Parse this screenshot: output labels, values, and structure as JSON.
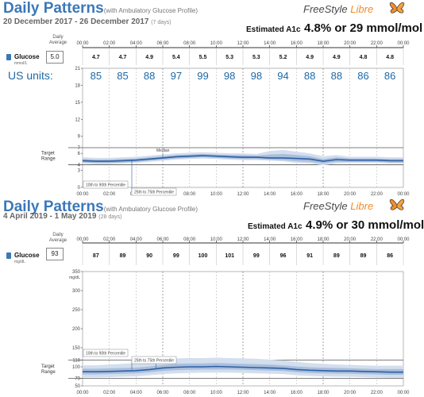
{
  "report": {
    "logo_freestyle": "FreeStyle",
    "logo_libre": "Libre",
    "daily_average_label_line1": "Daily",
    "daily_average_label_line2": "Average",
    "glucose_label": "Glucose",
    "target_range_line1": "Target",
    "target_range_line2": "Range",
    "median_label": "Median",
    "pct_10_90": "10th to 90th Percentile",
    "pct_25_75": "25th to 75th Percentile",
    "us_units_label": "US units:"
  },
  "colors": {
    "title": "#3b78b8",
    "band_outer": "#d3deee",
    "band_inner": "#a9bedc",
    "median": "#2e5fa3",
    "us_units": "#1d68a6",
    "logo_accent": "#f28c28"
  },
  "chart_data": [
    {
      "type": "area",
      "title": "Daily Patterns",
      "subtitle": "(with Ambulatory Glucose Profile)",
      "date_range": "20 December 2017 - 26 December 2017",
      "days_label": "(7 days)",
      "estimated_a1c_label": "Estimated A1c",
      "estimated_a1c_value": "4.8% or 29 mmol/mol",
      "unit": "mmol/L",
      "daily_average": "5.0",
      "x_ticks": [
        "00:00",
        "02:00",
        "04:00",
        "06:00",
        "08:00",
        "10:00",
        "12:00",
        "14:00",
        "16:00",
        "18:00",
        "20:00",
        "22:00",
        "00:00"
      ],
      "hourly_labels": [
        "4.7",
        "4.7",
        "4.9",
        "5.4",
        "5.5",
        "5.3",
        "5.3",
        "5.2",
        "4.9",
        "4.9",
        "4.8",
        "4.8"
      ],
      "us_unit_labels": [
        "85",
        "85",
        "88",
        "97",
        "99",
        "98",
        "98",
        "94",
        "88",
        "88",
        "86",
        "86"
      ],
      "y_ticks": [
        21,
        18,
        15,
        12,
        9,
        6,
        3,
        0
      ],
      "y_ticks_labels": [
        "21",
        "18",
        "15",
        "12",
        "9",
        "6",
        "3",
        "0"
      ],
      "target_range_labels": [
        "7",
        "4"
      ],
      "ylim": [
        0,
        21
      ],
      "target_range": [
        4,
        7
      ],
      "x": [
        0,
        1,
        2,
        3,
        4,
        5,
        6,
        7,
        8,
        9,
        10,
        11,
        12,
        13,
        14,
        15,
        16,
        17,
        18,
        19,
        20,
        21,
        22,
        23,
        24
      ],
      "series": [
        {
          "values": [
            4.7,
            4.6,
            4.6,
            4.7,
            4.8,
            5.0,
            5.2,
            5.4,
            5.5,
            5.6,
            5.5,
            5.4,
            5.3,
            5.3,
            5.2,
            5.2,
            5.1,
            5.0,
            4.6,
            4.9,
            4.8,
            4.8,
            4.8,
            4.7,
            4.7
          ]
        },
        {
          "values": [
            4.4,
            4.3,
            4.3,
            4.4,
            4.5,
            4.7,
            4.9,
            5.1,
            5.2,
            5.3,
            5.2,
            5.1,
            5.0,
            5.0,
            4.9,
            4.8,
            4.6,
            4.5,
            4.2,
            4.5,
            4.5,
            4.5,
            4.5,
            4.4,
            4.4
          ]
        },
        {
          "values": [
            5.0,
            4.9,
            4.9,
            5.0,
            5.1,
            5.3,
            5.5,
            5.7,
            5.8,
            5.9,
            5.8,
            5.7,
            5.7,
            5.6,
            5.8,
            5.9,
            5.7,
            5.5,
            5.0,
            5.3,
            5.1,
            5.1,
            5.1,
            5.0,
            5.0
          ]
        },
        {
          "values": [
            4.2,
            4.1,
            4.1,
            4.2,
            4.3,
            4.5,
            4.7,
            4.9,
            5.0,
            5.1,
            5.0,
            4.9,
            4.8,
            4.8,
            4.7,
            4.6,
            4.3,
            4.2,
            3.9,
            4.2,
            4.3,
            4.3,
            4.3,
            4.2,
            4.2
          ]
        },
        {
          "values": [
            5.3,
            5.2,
            5.2,
            5.3,
            5.4,
            5.6,
            5.8,
            6.0,
            6.1,
            6.2,
            6.1,
            6.0,
            6.0,
            5.9,
            6.4,
            6.6,
            6.3,
            6.0,
            5.5,
            5.7,
            5.4,
            5.4,
            5.4,
            5.3,
            5.3
          ]
        }
      ]
    },
    {
      "type": "area",
      "title": "Daily Patterns",
      "subtitle": "(with Ambulatory Glucose Profile)",
      "date_range": "4 April 2019 - 1 May 2019",
      "days_label": "(28 days)",
      "estimated_a1c_label": "Estimated A1c",
      "estimated_a1c_value": "4.9% or 30 mmol/mol",
      "unit": "mg/dL",
      "daily_average": "93",
      "x_ticks": [
        "00:00",
        "02:00",
        "04:00",
        "06:00",
        "08:00",
        "10:00",
        "12:00",
        "14:00",
        "16:00",
        "18:00",
        "20:00",
        "22:00",
        "00:00"
      ],
      "hourly_labels": [
        "87",
        "89",
        "90",
        "99",
        "100",
        "101",
        "99",
        "96",
        "91",
        "89",
        "89",
        "86"
      ],
      "y_ticks": [
        350,
        300,
        250,
        200,
        150,
        118,
        100,
        70,
        50
      ],
      "y_ticks_labels": [
        "350",
        "300",
        "250",
        "200",
        "150",
        "118",
        "100",
        "70",
        "50"
      ],
      "ylim": [
        0,
        350
      ],
      "target_range": [
        70,
        118
      ],
      "x": [
        0,
        1,
        2,
        3,
        4,
        5,
        6,
        7,
        8,
        9,
        10,
        11,
        12,
        13,
        14,
        15,
        16,
        17,
        18,
        19,
        20,
        21,
        22,
        23,
        24
      ],
      "series": [
        {
          "values": [
            87,
            87,
            88,
            89,
            90,
            93,
            97,
            99,
            100,
            100,
            101,
            100,
            99,
            98,
            97,
            96,
            93,
            91,
            90,
            89,
            89,
            88,
            87,
            86,
            86
          ]
        },
        {
          "values": [
            80,
            80,
            81,
            82,
            83,
            86,
            89,
            91,
            92,
            93,
            93,
            93,
            92,
            91,
            90,
            89,
            86,
            84,
            83,
            82,
            82,
            81,
            80,
            79,
            79
          ]
        },
        {
          "values": [
            95,
            95,
            96,
            97,
            98,
            101,
            105,
            108,
            109,
            109,
            110,
            109,
            108,
            107,
            106,
            104,
            101,
            99,
            98,
            97,
            96,
            95,
            94,
            94,
            94
          ]
        },
        {
          "values": [
            72,
            72,
            73,
            74,
            75,
            78,
            81,
            83,
            84,
            85,
            85,
            85,
            84,
            83,
            82,
            81,
            78,
            76,
            75,
            74,
            74,
            73,
            72,
            71,
            71
          ]
        },
        {
          "values": [
            104,
            104,
            106,
            108,
            110,
            114,
            119,
            122,
            123,
            123,
            124,
            123,
            122,
            121,
            119,
            117,
            113,
            110,
            108,
            106,
            105,
            104,
            103,
            103,
            103
          ]
        }
      ]
    }
  ]
}
